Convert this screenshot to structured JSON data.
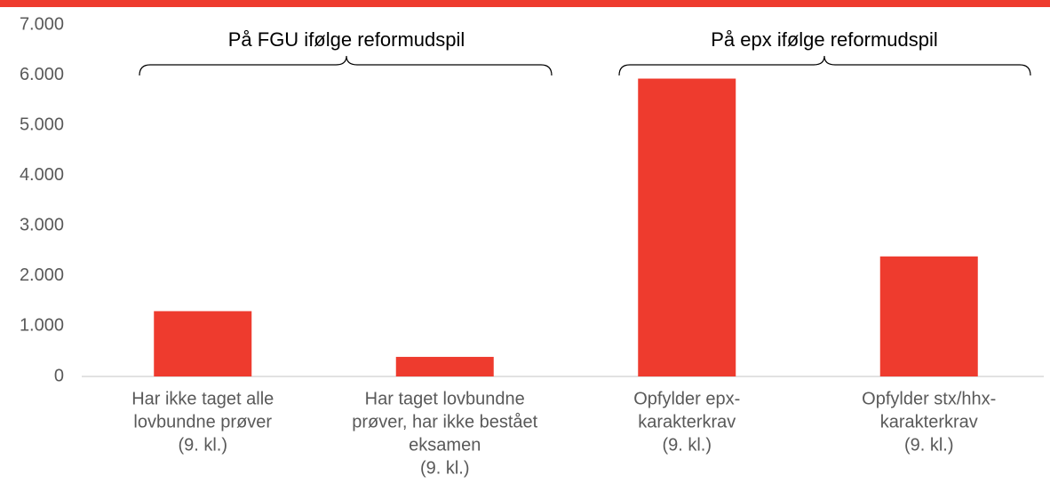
{
  "chart_data": {
    "type": "bar",
    "categories": [
      [
        "Har ikke taget alle",
        "lovbundne prøver",
        "(9. kl.)"
      ],
      [
        "Har taget lovbundne",
        "prøver, har ikke bestået",
        "eksamen",
        "(9. kl.)"
      ],
      [
        "Opfylder epx-",
        "karakterkrav",
        "(9. kl.)"
      ],
      [
        "Opfylder stx/hhx-",
        "karakterkrav",
        "(9. kl.)"
      ]
    ],
    "values": [
      1300,
      390,
      5930,
      2390
    ],
    "color": "#ee3b2e",
    "ylim": [
      0,
      7000
    ],
    "yticks": [
      0,
      {
        "value": 1000,
        "label": "1.000"
      },
      {
        "value": 2000,
        "label": "2.000"
      },
      {
        "value": 3000,
        "label": "3.000"
      },
      {
        "value": 4000,
        "label": "4.000"
      },
      {
        "value": 5000,
        "label": "5.000"
      },
      {
        "value": 6000,
        "label": "6.000"
      },
      {
        "value": 7000,
        "label": "7.000"
      }
    ],
    "grid": false,
    "annotations": [
      "På FGU ifølge reformudspil",
      "På epx ifølge reformudspil"
    ]
  }
}
